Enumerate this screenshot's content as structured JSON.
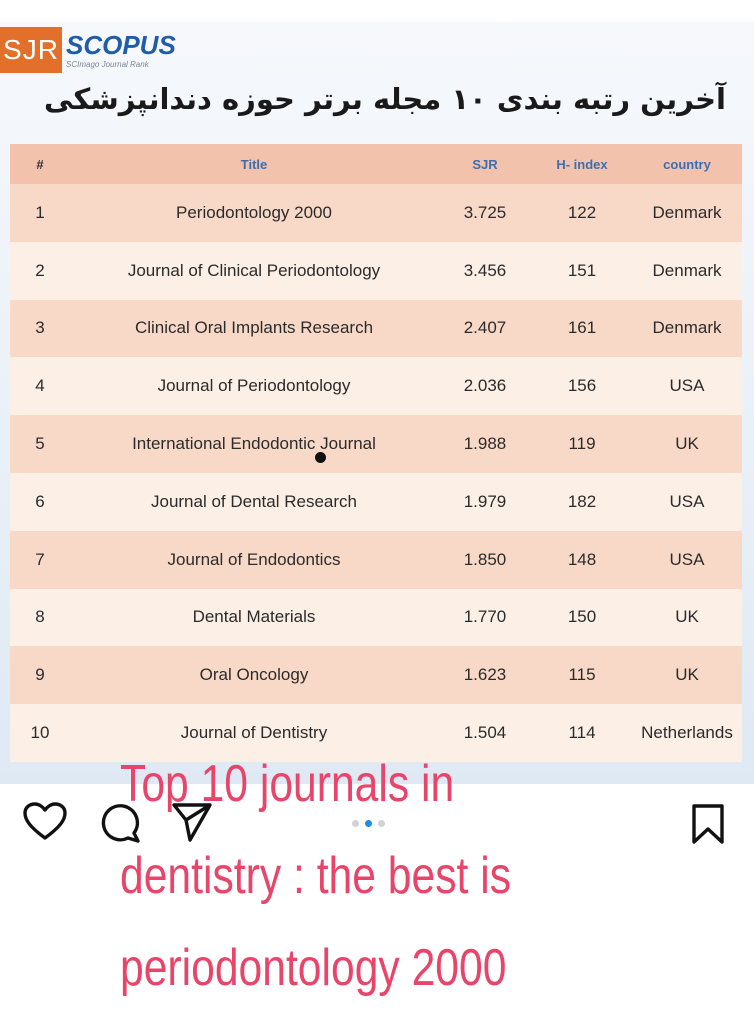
{
  "logo": {
    "sjr": "SJR",
    "scopus": "SCOPUS",
    "scopus_sub": "SCImago Journal Rank"
  },
  "heading": "آخرین رتبه بندی ۱۰ مجله برتر حوزه دندانپزشکی",
  "table": {
    "headers": {
      "num": "#",
      "title": "Title",
      "sjr": "SJR",
      "h_index": "H- index",
      "country": "country"
    },
    "rows": [
      {
        "num": "1",
        "title": "Periodontology 2000",
        "sjr": "3.725",
        "h_index": "122",
        "country": "Denmark"
      },
      {
        "num": "2",
        "title": "Journal of Clinical Periodontology",
        "sjr": "3.456",
        "h_index": "151",
        "country": "Denmark"
      },
      {
        "num": "3",
        "title": "Clinical Oral Implants Research",
        "sjr": "2.407",
        "h_index": "161",
        "country": "Denmark"
      },
      {
        "num": "4",
        "title": "Journal of Periodontology",
        "sjr": "2.036",
        "h_index": "156",
        "country": "USA"
      },
      {
        "num": "5",
        "title": "International Endodontic Journal",
        "sjr": "1.988",
        "h_index": "119",
        "country": "UK"
      },
      {
        "num": "6",
        "title": "Journal of Dental Research",
        "sjr": "1.979",
        "h_index": "182",
        "country": "USA"
      },
      {
        "num": "7",
        "title": "Journal of Endodontics",
        "sjr": "1.850",
        "h_index": "148",
        "country": "USA"
      },
      {
        "num": "8",
        "title": "Dental Materials",
        "sjr": "1.770",
        "h_index": "150",
        "country": "UK"
      },
      {
        "num": "9",
        "title": "Oral Oncology",
        "sjr": "1.623",
        "h_index": "115",
        "country": "UK"
      },
      {
        "num": "10",
        "title": "Journal of Dentistry",
        "sjr": "1.504",
        "h_index": "114",
        "country": "Netherlands"
      }
    ]
  },
  "caption": {
    "line1": "Top 10 journals in",
    "line2": "dentistry  : the best is",
    "line3": "periodontology 2000"
  },
  "carousel": {
    "count": 3,
    "active_index": 1
  },
  "icons": {
    "like": "heart-icon",
    "comment": "comment-icon",
    "share": "share-icon",
    "save": "bookmark-icon"
  },
  "colors": {
    "caption": "#e8456a",
    "sjr_logo": "#e2702a",
    "scopus_logo": "#1f5da8",
    "header_row": "#f3c2ad",
    "row_odd": "#f8d9c8",
    "row_even": "#fcefe6",
    "dot_active": "#1e8fe0"
  }
}
